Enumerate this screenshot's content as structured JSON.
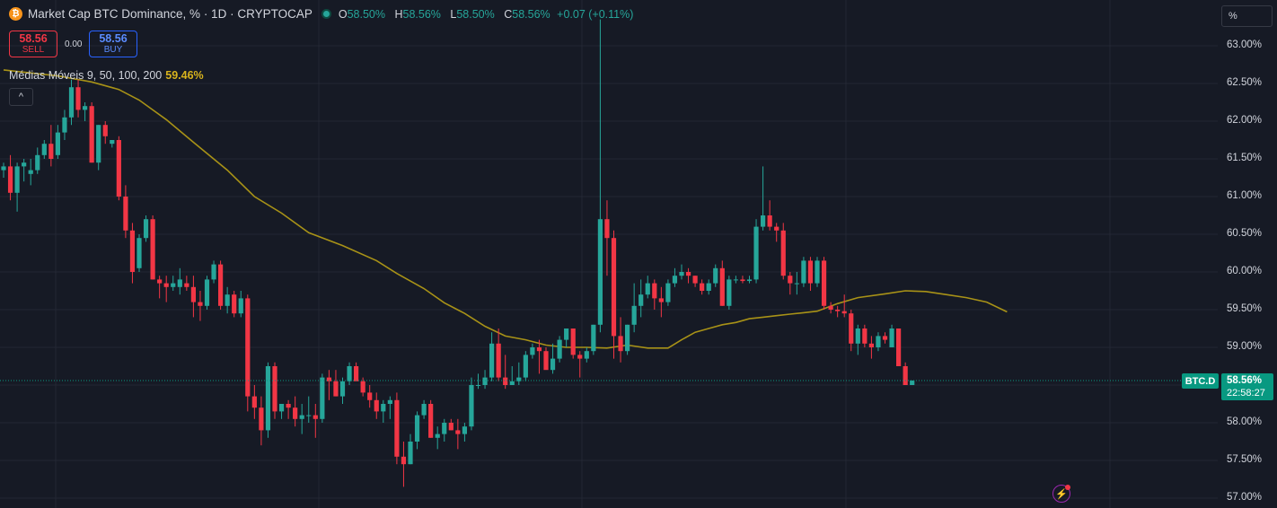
{
  "header": {
    "logo_glyph": "₿",
    "title": "Market Cap BTC Dominance, % · 1D · CRYPTOCAP",
    "ohlc": [
      {
        "label": "O",
        "value": "58.50%"
      },
      {
        "label": "H",
        "value": "58.56%"
      },
      {
        "label": "L",
        "value": "58.50%"
      },
      {
        "label": "C",
        "value": "58.56%"
      }
    ],
    "change": "+0.07 (+0.11%)"
  },
  "trade": {
    "sell_price": "58.56",
    "sell_label": "SELL",
    "spread": "0.00",
    "buy_price": "58.56",
    "buy_label": "BUY"
  },
  "indicator": {
    "label": "Médias Móveis 9, 50, 100, 200",
    "value": "59.46%"
  },
  "controls": {
    "collapse_glyph": "^",
    "scale_mode": "%"
  },
  "price_axis": {
    "ticks": [
      "63.00%",
      "62.50%",
      "62.00%",
      "61.50%",
      "61.00%",
      "60.50%",
      "60.00%",
      "59.50%",
      "59.00%",
      "58.50%",
      "58.00%",
      "57.50%",
      "57.00%"
    ],
    "symbol_tag": "BTC.D",
    "last_price_label": "58.56%",
    "countdown": "22:58:27"
  },
  "colors": {
    "up": "#26a69a",
    "down": "#f23645",
    "ma": "#a89217",
    "background": "#161a25",
    "grid": "#232733",
    "accent": "#089981"
  },
  "chart_data": {
    "type": "candlestick",
    "title": "Market Cap BTC Dominance, % · 1D · CRYPTOCAP",
    "ylim": [
      57.0,
      63.0
    ],
    "yticks": [
      57.0,
      57.5,
      58.0,
      58.5,
      59.0,
      59.5,
      60.0,
      60.5,
      61.0,
      61.5,
      62.0,
      62.5,
      63.0
    ],
    "last_close": 58.56,
    "grid": true,
    "candles": [
      [
        61.35,
        61.45,
        61.25,
        61.4
      ],
      [
        61.4,
        61.55,
        60.95,
        61.05
      ],
      [
        61.05,
        61.45,
        60.8,
        61.4
      ],
      [
        61.4,
        61.5,
        61.2,
        61.45
      ],
      [
        61.3,
        61.5,
        61.15,
        61.35
      ],
      [
        61.35,
        61.65,
        61.3,
        61.55
      ],
      [
        61.55,
        61.75,
        61.5,
        61.7
      ],
      [
        61.7,
        61.95,
        61.4,
        61.5
      ],
      [
        61.55,
        61.95,
        61.5,
        61.85
      ],
      [
        61.85,
        62.15,
        61.75,
        62.05
      ],
      [
        62.05,
        62.55,
        61.95,
        62.45
      ],
      [
        62.45,
        62.55,
        62.05,
        62.15
      ],
      [
        62.15,
        62.25,
        62.0,
        62.2
      ],
      [
        62.2,
        62.25,
        61.45,
        61.45
      ],
      [
        61.45,
        61.95,
        61.35,
        61.95
      ],
      [
        61.95,
        62.0,
        61.7,
        61.8
      ],
      [
        61.7,
        61.75,
        61.65,
        61.75
      ],
      [
        61.75,
        61.8,
        60.95,
        61.0
      ],
      [
        61.0,
        61.15,
        60.45,
        60.55
      ],
      [
        60.55,
        60.65,
        59.85,
        60.0
      ],
      [
        60.05,
        60.5,
        60.0,
        60.45
      ],
      [
        60.45,
        60.75,
        60.4,
        60.7
      ],
      [
        60.7,
        60.75,
        59.9,
        59.9
      ],
      [
        59.9,
        59.95,
        59.65,
        59.85
      ],
      [
        59.85,
        59.95,
        59.6,
        59.8
      ],
      [
        59.8,
        59.95,
        59.75,
        59.85
      ],
      [
        59.8,
        60.05,
        59.7,
        59.9
      ],
      [
        59.85,
        59.95,
        59.75,
        59.8
      ],
      [
        59.8,
        59.95,
        59.4,
        59.6
      ],
      [
        59.6,
        59.75,
        59.35,
        59.55
      ],
      [
        59.55,
        59.95,
        59.5,
        59.9
      ],
      [
        59.9,
        60.15,
        59.85,
        60.1
      ],
      [
        60.1,
        60.15,
        59.5,
        59.55
      ],
      [
        59.55,
        59.8,
        59.45,
        59.7
      ],
      [
        59.7,
        59.75,
        59.4,
        59.45
      ],
      [
        59.45,
        59.75,
        59.4,
        59.65
      ],
      [
        59.65,
        59.7,
        58.15,
        58.35
      ],
      [
        58.35,
        58.5,
        58.05,
        58.2
      ],
      [
        58.2,
        58.35,
        57.7,
        57.9
      ],
      [
        57.9,
        58.8,
        57.8,
        58.75
      ],
      [
        58.75,
        58.8,
        58.05,
        58.15
      ],
      [
        58.15,
        58.25,
        58.05,
        58.25
      ],
      [
        58.25,
        58.3,
        58.05,
        58.2
      ],
      [
        58.2,
        58.35,
        57.95,
        58.05
      ],
      [
        58.05,
        58.25,
        57.85,
        58.1
      ],
      [
        58.1,
        58.35,
        58.0,
        58.1
      ],
      [
        58.1,
        58.25,
        57.8,
        58.05
      ],
      [
        58.05,
        58.65,
        58.0,
        58.6
      ],
      [
        58.6,
        58.7,
        58.3,
        58.55
      ],
      [
        58.55,
        58.7,
        58.35,
        58.35
      ],
      [
        58.35,
        58.6,
        58.25,
        58.55
      ],
      [
        58.55,
        58.8,
        58.5,
        58.75
      ],
      [
        58.75,
        58.8,
        58.55,
        58.55
      ],
      [
        58.55,
        58.6,
        58.35,
        58.4
      ],
      [
        58.4,
        58.5,
        58.2,
        58.3
      ],
      [
        58.3,
        58.4,
        58.05,
        58.15
      ],
      [
        58.15,
        58.3,
        58.0,
        58.25
      ],
      [
        58.25,
        58.35,
        58.05,
        58.3
      ],
      [
        58.3,
        58.4,
        57.45,
        57.55
      ],
      [
        57.55,
        57.75,
        57.15,
        57.45
      ],
      [
        57.45,
        57.85,
        57.45,
        57.75
      ],
      [
        57.75,
        58.15,
        57.65,
        58.1
      ],
      [
        58.1,
        58.3,
        58.05,
        58.25
      ],
      [
        58.25,
        58.3,
        57.8,
        57.8
      ],
      [
        57.8,
        57.95,
        57.65,
        57.85
      ],
      [
        57.85,
        58.05,
        57.75,
        58.0
      ],
      [
        58.0,
        58.05,
        57.9,
        57.9
      ],
      [
        57.9,
        58.05,
        57.65,
        57.85
      ],
      [
        57.85,
        58.0,
        57.75,
        57.95
      ],
      [
        57.95,
        58.6,
        57.9,
        58.5
      ],
      [
        58.5,
        58.65,
        58.45,
        58.5
      ],
      [
        58.5,
        58.7,
        58.45,
        58.6
      ],
      [
        58.6,
        59.2,
        58.55,
        59.05
      ],
      [
        59.05,
        59.25,
        58.55,
        58.6
      ],
      [
        58.6,
        58.9,
        58.45,
        58.5
      ],
      [
        58.5,
        58.75,
        58.5,
        58.55
      ],
      [
        58.55,
        58.8,
        58.5,
        58.6
      ],
      [
        58.6,
        58.95,
        58.55,
        58.9
      ],
      [
        58.9,
        59.05,
        58.85,
        59.0
      ],
      [
        59.0,
        59.1,
        58.65,
        58.95
      ],
      [
        58.95,
        59.0,
        58.75,
        58.7
      ],
      [
        58.7,
        59.05,
        58.65,
        58.85
      ],
      [
        58.85,
        59.15,
        58.8,
        59.1
      ],
      [
        59.1,
        59.25,
        59.0,
        59.25
      ],
      [
        59.25,
        59.25,
        58.85,
        58.9
      ],
      [
        58.9,
        58.95,
        58.6,
        58.85
      ],
      [
        58.85,
        59.0,
        58.8,
        58.95
      ],
      [
        58.95,
        59.3,
        58.9,
        59.3
      ],
      [
        59.3,
        63.35,
        59.2,
        60.7
      ],
      [
        60.7,
        60.95,
        59.95,
        60.45
      ],
      [
        60.45,
        60.55,
        58.85,
        59.15
      ],
      [
        59.15,
        59.4,
        58.8,
        58.95
      ],
      [
        58.95,
        59.3,
        58.9,
        59.3
      ],
      [
        59.3,
        59.85,
        59.2,
        59.55
      ],
      [
        59.55,
        59.9,
        59.4,
        59.7
      ],
      [
        59.7,
        59.95,
        59.65,
        59.85
      ],
      [
        59.85,
        59.9,
        59.5,
        59.65
      ],
      [
        59.65,
        59.8,
        59.4,
        59.6
      ],
      [
        59.6,
        59.9,
        59.55,
        59.85
      ],
      [
        59.85,
        60.05,
        59.8,
        59.95
      ],
      [
        59.95,
        60.1,
        59.9,
        60.0
      ],
      [
        60.0,
        60.05,
        59.85,
        59.95
      ],
      [
        59.95,
        59.95,
        59.8,
        59.85
      ],
      [
        59.85,
        59.9,
        59.7,
        59.75
      ],
      [
        59.75,
        59.9,
        59.7,
        59.85
      ],
      [
        59.85,
        60.1,
        59.8,
        60.05
      ],
      [
        60.05,
        60.15,
        59.55,
        59.55
      ],
      [
        59.55,
        59.95,
        59.5,
        59.9
      ],
      [
        59.9,
        59.95,
        59.85,
        59.9
      ],
      [
        59.9,
        59.95,
        59.85,
        59.88
      ],
      [
        59.88,
        59.95,
        59.85,
        59.9
      ],
      [
        59.9,
        60.7,
        59.85,
        60.6
      ],
      [
        60.6,
        61.4,
        60.55,
        60.75
      ],
      [
        60.75,
        60.95,
        60.55,
        60.6
      ],
      [
        60.6,
        60.65,
        60.4,
        60.55
      ],
      [
        60.55,
        60.65,
        59.9,
        59.95
      ],
      [
        59.95,
        60.0,
        59.7,
        59.85
      ],
      [
        59.85,
        60.0,
        59.7,
        59.85
      ],
      [
        59.85,
        60.2,
        59.8,
        60.15
      ],
      [
        60.15,
        60.2,
        59.75,
        59.85
      ],
      [
        59.85,
        60.2,
        59.8,
        60.15
      ],
      [
        60.15,
        60.2,
        59.5,
        59.55
      ],
      [
        59.55,
        59.6,
        59.45,
        59.5
      ],
      [
        59.5,
        59.55,
        59.4,
        59.48
      ],
      [
        59.48,
        59.7,
        59.4,
        59.45
      ],
      [
        59.45,
        59.5,
        58.95,
        59.05
      ],
      [
        59.05,
        59.3,
        58.9,
        59.25
      ],
      [
        59.25,
        59.3,
        59.0,
        59.05
      ],
      [
        59.05,
        59.15,
        58.85,
        59.0
      ],
      [
        59.0,
        59.2,
        58.95,
        59.15
      ],
      [
        59.15,
        59.2,
        59.05,
        59.1
      ],
      [
        59.0,
        59.3,
        59.0,
        59.25
      ],
      [
        59.25,
        59.25,
        58.75,
        58.75
      ],
      [
        58.75,
        58.8,
        58.5,
        58.5
      ],
      [
        58.5,
        58.56,
        58.5,
        58.56
      ]
    ],
    "moving_average": [
      [
        0,
        62.68
      ],
      [
        8,
        62.6
      ],
      [
        13,
        62.52
      ],
      [
        17,
        62.42
      ],
      [
        20,
        62.28
      ],
      [
        24,
        62.02
      ],
      [
        28,
        61.72
      ],
      [
        33,
        61.35
      ],
      [
        37,
        61.0
      ],
      [
        41,
        60.78
      ],
      [
        45,
        60.52
      ],
      [
        50,
        60.35
      ],
      [
        55,
        60.15
      ],
      [
        58,
        59.98
      ],
      [
        62,
        59.78
      ],
      [
        65,
        59.59
      ],
      [
        68,
        59.45
      ],
      [
        71,
        59.28
      ],
      [
        74,
        59.15
      ],
      [
        77,
        59.1
      ],
      [
        80,
        59.03
      ],
      [
        83,
        59.0
      ],
      [
        86,
        59.0
      ],
      [
        89,
        58.99
      ],
      [
        92,
        59.03
      ],
      [
        95,
        58.99
      ],
      [
        98,
        58.99
      ],
      [
        100,
        59.1
      ],
      [
        102,
        59.2
      ],
      [
        104,
        59.25
      ],
      [
        106,
        59.3
      ],
      [
        108,
        59.33
      ],
      [
        110,
        59.38
      ],
      [
        112,
        59.4
      ],
      [
        114,
        59.42
      ],
      [
        116,
        59.44
      ],
      [
        118,
        59.46
      ],
      [
        120,
        59.48
      ],
      [
        123,
        59.58
      ],
      [
        126,
        59.66
      ],
      [
        130,
        59.71
      ],
      [
        133,
        59.75
      ],
      [
        136,
        59.74
      ],
      [
        139,
        59.7
      ],
      [
        142,
        59.66
      ],
      [
        145,
        59.6
      ],
      [
        148,
        59.47
      ]
    ]
  }
}
